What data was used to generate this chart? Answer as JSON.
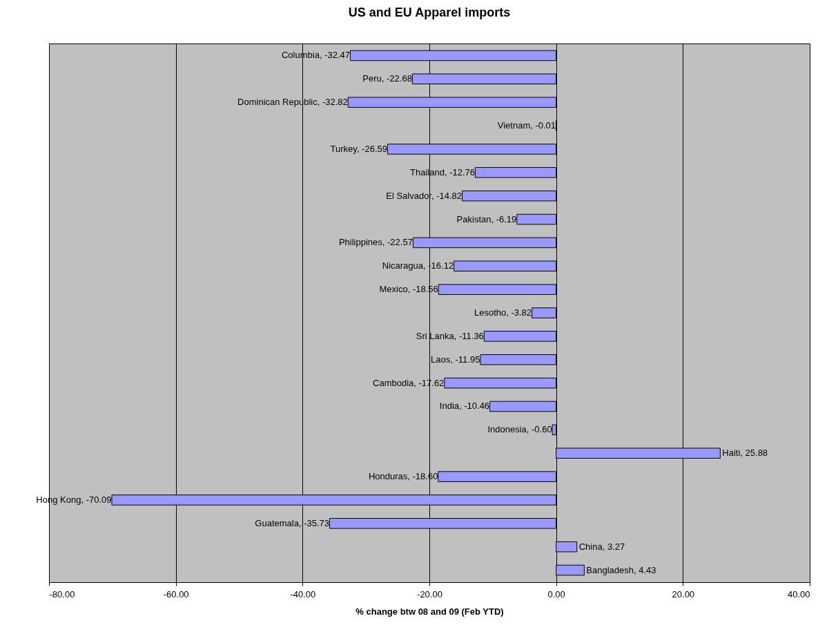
{
  "chart_data": {
    "type": "bar",
    "orientation": "horizontal",
    "title": "US and EU Apparel imports",
    "xlabel": "% change btw 08 and 09 (Feb YTD)",
    "categories": [
      null,
      null,
      null,
      null,
      null,
      null,
      null,
      null,
      null,
      null,
      null,
      null,
      null,
      null,
      null,
      null,
      null,
      null,
      null,
      null,
      null,
      null,
      null
    ],
    "values": [
      -32.47,
      -22.68,
      -32.82,
      -0.01,
      -26.59,
      -12.76,
      -14.82,
      -6.19,
      -22.57,
      -16.12,
      -18.56,
      -3.82,
      -11.36,
      -11.95,
      -17.62,
      -10.46,
      -0.6,
      25.88,
      -18.6,
      -70.09,
      -35.73,
      3.27,
      4.43
    ],
    "value_labels": [
      "Columbia, -32.47",
      "Peru, -22.68",
      "Dominican Republic, -32.82",
      "Vietnam, -0.01",
      "Turkey, -26.59",
      "Thailand, -12.76",
      "El Salvador, -14.82",
      "Pakistan, -6.19",
      "Philippines, -22.57",
      "Nicaragua, -16.12",
      "Mexico, -18.56",
      "Lesotho, -3.82",
      "Sri Lanka, -11.36",
      "Laos, -11.95",
      "Cambodia, -17.62",
      "India, -10.46",
      "Indonesia, -0.60",
      "Haiti, 25.88",
      "Honduras, -18.60",
      "Hong Kong, -70.09",
      "Guatemala, -35.73",
      "China, 3.27",
      "Bangladesh, 4.43"
    ],
    "color": "#9999ff",
    "xlim": [
      -80,
      40
    ],
    "xticks": [
      {
        "value": -80,
        "label": "-80.00"
      },
      {
        "value": -60,
        "label": "-60.00"
      },
      {
        "value": -40,
        "label": "-40.00"
      },
      {
        "value": -20,
        "label": "-20.00"
      },
      {
        "value": 0,
        "label": "0.00"
      },
      {
        "value": 20,
        "label": "20.00"
      },
      {
        "value": 40,
        "label": "40.00"
      }
    ],
    "grid": "x",
    "tick_labels": "x"
  }
}
